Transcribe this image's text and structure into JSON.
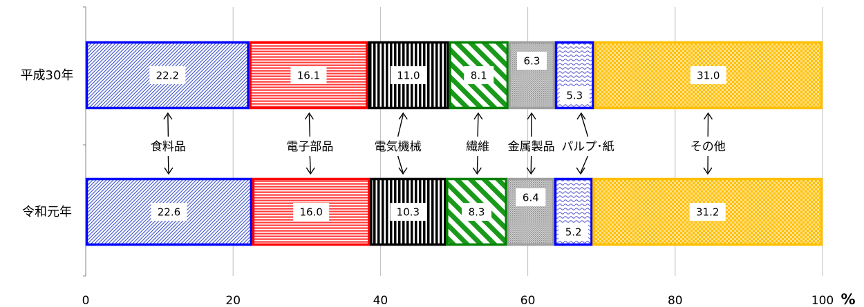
{
  "chart_data": {
    "type": "bar",
    "orientation": "horizontal",
    "stacked": "percent",
    "categories": [
      "平成30年",
      "令和元年"
    ],
    "series": [
      {
        "name": "食料品",
        "values": [
          22.2,
          22.6
        ],
        "color": "#0000ff",
        "pattern": "diagonal-hatch"
      },
      {
        "name": "電子部品",
        "values": [
          16.1,
          16.0
        ],
        "color": "#ff0000",
        "pattern": "horizontal-lines"
      },
      {
        "name": "電気機械",
        "values": [
          11.0,
          10.3
        ],
        "color": "#000000",
        "pattern": "vertical-lines"
      },
      {
        "name": "繊維",
        "values": [
          8.1,
          8.3
        ],
        "color": "#008000",
        "pattern": "wide-diagonal"
      },
      {
        "name": "金属製品",
        "values": [
          6.3,
          6.4
        ],
        "color": "#a0a0a0",
        "pattern": "dots"
      },
      {
        "name": "パルプ･紙",
        "values": [
          5.3,
          5.2
        ],
        "color": "#0000ff",
        "pattern": "waves"
      },
      {
        "name": "その他",
        "values": [
          31.0,
          31.2
        ],
        "color": "#ffc000",
        "pattern": "checker"
      }
    ],
    "xticks": [
      "0",
      "20",
      "40",
      "60",
      "80",
      "100"
    ],
    "xlim": [
      0,
      100
    ],
    "xunit": "%",
    "grid": true
  }
}
